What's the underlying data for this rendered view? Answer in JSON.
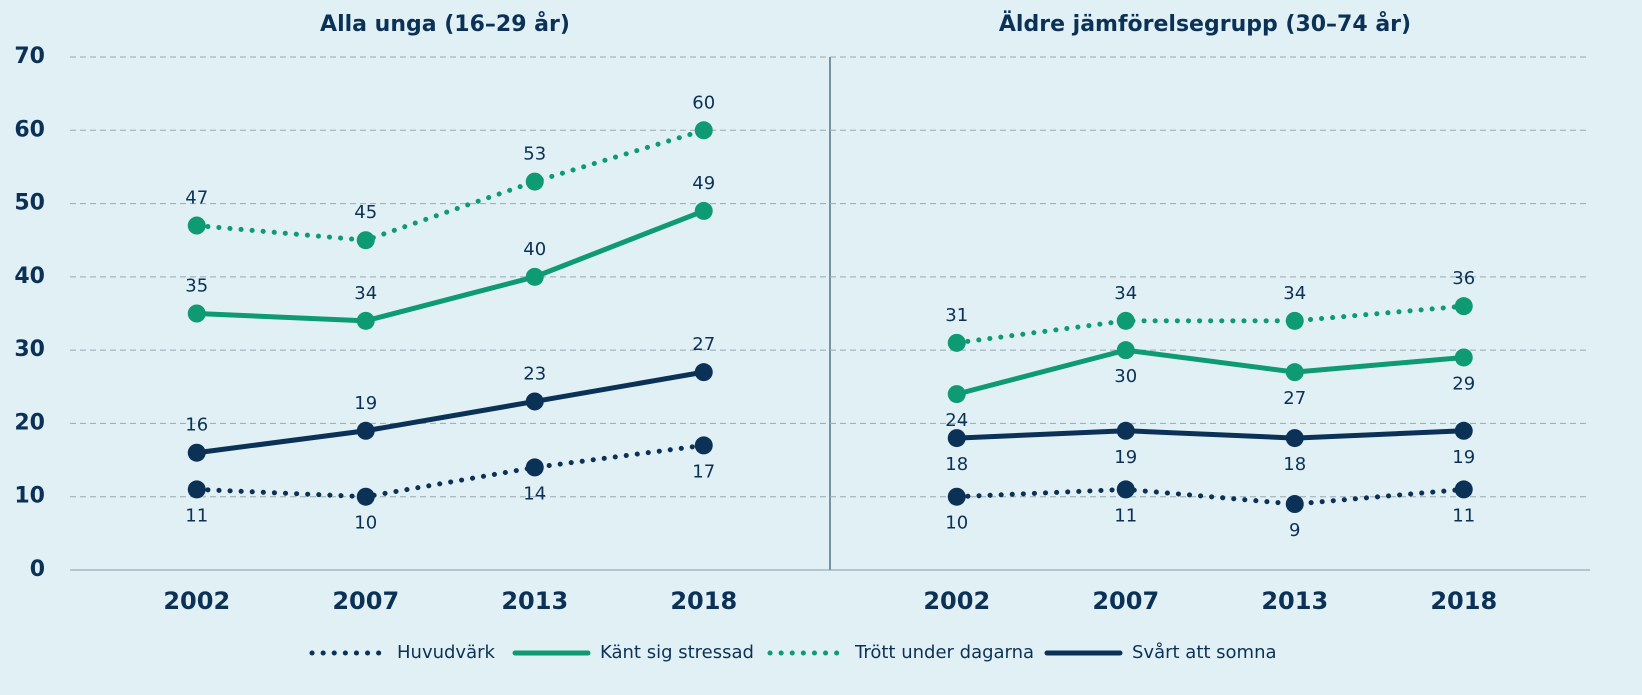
{
  "chart_data": [
    {
      "type": "line",
      "title": "Alla unga (16–29 år)",
      "categories": [
        "2002",
        "2007",
        "2013",
        "2018"
      ],
      "ylim": [
        0,
        70
      ],
      "yticks": [
        0,
        10,
        20,
        30,
        40,
        50,
        60,
        70
      ],
      "grid": true,
      "series": [
        {
          "name": "Huvudvärk",
          "color": "#0b3157",
          "style": "dotted",
          "label_position": "below",
          "values": [
            11,
            10,
            14,
            17
          ]
        },
        {
          "name": "Känt sig stressad",
          "color": "#0e9a72",
          "style": "solid",
          "label_position": "above",
          "values": [
            35,
            34,
            40,
            49
          ]
        },
        {
          "name": "Trött under dagarna",
          "color": "#0e9a72",
          "style": "dotted",
          "label_position": "above",
          "values": [
            47,
            45,
            53,
            60
          ]
        },
        {
          "name": "Svårt att somna",
          "color": "#0b3157",
          "style": "solid",
          "label_position": "above",
          "values": [
            16,
            19,
            23,
            27
          ]
        }
      ]
    },
    {
      "type": "line",
      "title": "Äldre jämförelsegrupp (30–74 år)",
      "categories": [
        "2002",
        "2007",
        "2013",
        "2018"
      ],
      "ylim": [
        0,
        70
      ],
      "yticks": [
        0,
        10,
        20,
        30,
        40,
        50,
        60,
        70
      ],
      "grid": true,
      "series": [
        {
          "name": "Huvudvärk",
          "color": "#0b3157",
          "style": "dotted",
          "label_position": "below",
          "values": [
            10,
            11,
            9,
            11
          ]
        },
        {
          "name": "Känt sig stressad",
          "color": "#0e9a72",
          "style": "solid",
          "label_position": "below",
          "values": [
            24,
            30,
            27,
            29
          ]
        },
        {
          "name": "Trött under dagarna",
          "color": "#0e9a72",
          "style": "dotted",
          "label_position": "above",
          "values": [
            31,
            34,
            34,
            36
          ]
        },
        {
          "name": "Svårt att somna",
          "color": "#0b3157",
          "style": "solid",
          "label_position": "below",
          "values": [
            18,
            19,
            18,
            19
          ]
        }
      ]
    }
  ]
}
